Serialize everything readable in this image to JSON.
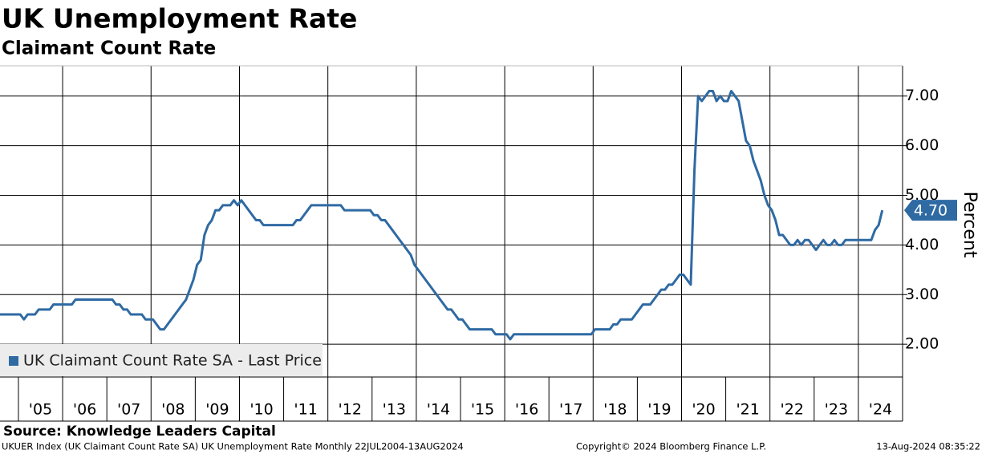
{
  "chart_data": {
    "type": "line",
    "title": "UK Unemployment Rate",
    "subtitle": "Claimant Count Rate",
    "ylabel": "Percent",
    "source": "Source: Knowledge Leaders Capital",
    "footer_left": "UKUER Index (UK Claimant Count Rate SA) UK Unemployment Rate  Monthly 22JUL2004-13AUG2024",
    "footer_center": "Copyright© 2024 Bloomberg Finance L.P.",
    "footer_right": "13-Aug-2024 08:35:22",
    "last_value_label": "4.70",
    "legend": "lower left",
    "grid": true,
    "ylim": [
      1.34,
      7.61
    ],
    "yticks": [
      {
        "value": 2,
        "label": "2.00"
      },
      {
        "value": 3,
        "label": "3.00"
      },
      {
        "value": 4,
        "label": "4.00"
      },
      {
        "value": 5,
        "label": "5.00"
      },
      {
        "value": 6,
        "label": "6.00"
      },
      {
        "value": 7,
        "label": "7.00"
      }
    ],
    "xlim": [
      "2004-08",
      "2025-01"
    ],
    "xticks": [
      {
        "value": "2005",
        "label": "'05"
      },
      {
        "value": "2006",
        "label": "'06"
      },
      {
        "value": "2007",
        "label": "'07"
      },
      {
        "value": "2008",
        "label": "'08"
      },
      {
        "value": "2009",
        "label": "'09"
      },
      {
        "value": "2010",
        "label": "'10"
      },
      {
        "value": "2011",
        "label": "'11"
      },
      {
        "value": "2012",
        "label": "'12"
      },
      {
        "value": "2013",
        "label": "'13"
      },
      {
        "value": "2014",
        "label": "'14"
      },
      {
        "value": "2015",
        "label": "'15"
      },
      {
        "value": "2016",
        "label": "'16"
      },
      {
        "value": "2017",
        "label": "'17"
      },
      {
        "value": "2018",
        "label": "'18"
      },
      {
        "value": "2019",
        "label": "'19"
      },
      {
        "value": "2020",
        "label": "'20"
      },
      {
        "value": "2021",
        "label": "'21"
      },
      {
        "value": "2022",
        "label": "'22"
      },
      {
        "value": "2023",
        "label": "'23"
      },
      {
        "value": "2024",
        "label": "'24"
      }
    ],
    "x": [
      "2004-07",
      "2004-08",
      "2004-09",
      "2004-10",
      "2004-11",
      "2004-12",
      "2005-01",
      "2005-02",
      "2005-03",
      "2005-04",
      "2005-05",
      "2005-06",
      "2005-07",
      "2005-08",
      "2005-09",
      "2005-10",
      "2005-11",
      "2005-12",
      "2006-01",
      "2006-02",
      "2006-03",
      "2006-04",
      "2006-05",
      "2006-06",
      "2006-07",
      "2006-08",
      "2006-09",
      "2006-10",
      "2006-11",
      "2006-12",
      "2007-01",
      "2007-02",
      "2007-03",
      "2007-04",
      "2007-05",
      "2007-06",
      "2007-07",
      "2007-08",
      "2007-09",
      "2007-10",
      "2007-11",
      "2007-12",
      "2008-01",
      "2008-02",
      "2008-03",
      "2008-04",
      "2008-05",
      "2008-06",
      "2008-07",
      "2008-08",
      "2008-09",
      "2008-10",
      "2008-11",
      "2008-12",
      "2009-01",
      "2009-02",
      "2009-03",
      "2009-04",
      "2009-05",
      "2009-06",
      "2009-07",
      "2009-08",
      "2009-09",
      "2009-10",
      "2009-11",
      "2009-12",
      "2010-01",
      "2010-02",
      "2010-03",
      "2010-04",
      "2010-05",
      "2010-06",
      "2010-07",
      "2010-08",
      "2010-09",
      "2010-10",
      "2010-11",
      "2010-12",
      "2011-01",
      "2011-02",
      "2011-03",
      "2011-04",
      "2011-05",
      "2011-06",
      "2011-07",
      "2011-08",
      "2011-09",
      "2011-10",
      "2011-11",
      "2011-12",
      "2012-01",
      "2012-02",
      "2012-03",
      "2012-04",
      "2012-05",
      "2012-06",
      "2012-07",
      "2012-08",
      "2012-09",
      "2012-10",
      "2012-11",
      "2012-12",
      "2013-01",
      "2013-02",
      "2013-03",
      "2013-04",
      "2013-05",
      "2013-06",
      "2013-07",
      "2013-08",
      "2013-09",
      "2013-10",
      "2013-11",
      "2013-12",
      "2014-01",
      "2014-02",
      "2014-03",
      "2014-04",
      "2014-05",
      "2014-06",
      "2014-07",
      "2014-08",
      "2014-09",
      "2014-10",
      "2014-11",
      "2014-12",
      "2015-01",
      "2015-02",
      "2015-03",
      "2015-04",
      "2015-05",
      "2015-06",
      "2015-07",
      "2015-08",
      "2015-09",
      "2015-10",
      "2015-11",
      "2015-12",
      "2016-01",
      "2016-02",
      "2016-03",
      "2016-04",
      "2016-05",
      "2016-06",
      "2016-07",
      "2016-08",
      "2016-09",
      "2016-10",
      "2016-11",
      "2016-12",
      "2017-01",
      "2017-02",
      "2017-03",
      "2017-04",
      "2017-05",
      "2017-06",
      "2017-07",
      "2017-08",
      "2017-09",
      "2017-10",
      "2017-11",
      "2017-12",
      "2018-01",
      "2018-02",
      "2018-03",
      "2018-04",
      "2018-05",
      "2018-06",
      "2018-07",
      "2018-08",
      "2018-09",
      "2018-10",
      "2018-11",
      "2018-12",
      "2019-01",
      "2019-02",
      "2019-03",
      "2019-04",
      "2019-05",
      "2019-06",
      "2019-07",
      "2019-08",
      "2019-09",
      "2019-10",
      "2019-11",
      "2019-12",
      "2020-01",
      "2020-02",
      "2020-03",
      "2020-04",
      "2020-05",
      "2020-06",
      "2020-07",
      "2020-08",
      "2020-09",
      "2020-10",
      "2020-11",
      "2020-12",
      "2021-01",
      "2021-02",
      "2021-03",
      "2021-04",
      "2021-05",
      "2021-06",
      "2021-07",
      "2021-08",
      "2021-09",
      "2021-10",
      "2021-11",
      "2021-12",
      "2022-01",
      "2022-02",
      "2022-03",
      "2022-04",
      "2022-05",
      "2022-06",
      "2022-07",
      "2022-08",
      "2022-09",
      "2022-10",
      "2022-11",
      "2022-12",
      "2023-01",
      "2023-02",
      "2023-03",
      "2023-04",
      "2023-05",
      "2023-06",
      "2023-07",
      "2023-08",
      "2023-09",
      "2023-10",
      "2023-11",
      "2023-12",
      "2024-01",
      "2024-02",
      "2024-03",
      "2024-04",
      "2024-05",
      "2024-06",
      "2024-07"
    ],
    "series": [
      {
        "name": "UK Claimant Count Rate SA - Last Price",
        "color": "#2f6aa3",
        "values": [
          2.6,
          2.6,
          2.6,
          2.6,
          2.6,
          2.6,
          2.6,
          2.5,
          2.6,
          2.6,
          2.6,
          2.7,
          2.7,
          2.7,
          2.7,
          2.8,
          2.8,
          2.8,
          2.8,
          2.8,
          2.8,
          2.9,
          2.9,
          2.9,
          2.9,
          2.9,
          2.9,
          2.9,
          2.9,
          2.9,
          2.9,
          2.9,
          2.8,
          2.8,
          2.7,
          2.7,
          2.6,
          2.6,
          2.6,
          2.6,
          2.5,
          2.5,
          2.5,
          2.4,
          2.3,
          2.3,
          2.4,
          2.5,
          2.6,
          2.7,
          2.8,
          2.9,
          3.1,
          3.3,
          3.6,
          3.7,
          4.2,
          4.4,
          4.5,
          4.7,
          4.7,
          4.8,
          4.8,
          4.8,
          4.9,
          4.8,
          4.9,
          4.8,
          4.7,
          4.6,
          4.5,
          4.5,
          4.4,
          4.4,
          4.4,
          4.4,
          4.4,
          4.4,
          4.4,
          4.4,
          4.4,
          4.5,
          4.5,
          4.6,
          4.7,
          4.8,
          4.8,
          4.8,
          4.8,
          4.8,
          4.8,
          4.8,
          4.8,
          4.8,
          4.7,
          4.7,
          4.7,
          4.7,
          4.7,
          4.7,
          4.7,
          4.7,
          4.6,
          4.6,
          4.5,
          4.5,
          4.4,
          4.3,
          4.2,
          4.1,
          4.0,
          3.9,
          3.8,
          3.6,
          3.5,
          3.4,
          3.3,
          3.2,
          3.1,
          3.0,
          2.9,
          2.8,
          2.7,
          2.7,
          2.6,
          2.5,
          2.5,
          2.4,
          2.3,
          2.3,
          2.3,
          2.3,
          2.3,
          2.3,
          2.3,
          2.2,
          2.2,
          2.2,
          2.2,
          2.1,
          2.2,
          2.2,
          2.2,
          2.2,
          2.2,
          2.2,
          2.2,
          2.2,
          2.2,
          2.2,
          2.2,
          2.2,
          2.2,
          2.2,
          2.2,
          2.2,
          2.2,
          2.2,
          2.2,
          2.2,
          2.2,
          2.2,
          2.3,
          2.3,
          2.3,
          2.3,
          2.3,
          2.4,
          2.4,
          2.5,
          2.5,
          2.5,
          2.5,
          2.6,
          2.7,
          2.8,
          2.8,
          2.8,
          2.9,
          3.0,
          3.1,
          3.1,
          3.2,
          3.2,
          3.3,
          3.4,
          3.4,
          3.3,
          3.2,
          5.5,
          7.0,
          6.9,
          7.0,
          7.1,
          7.1,
          6.9,
          7.0,
          6.9,
          6.9,
          7.1,
          7.0,
          6.9,
          6.5,
          6.1,
          6.0,
          5.7,
          5.5,
          5.3,
          5.0,
          4.8,
          4.7,
          4.5,
          4.2,
          4.2,
          4.1,
          4.0,
          4.0,
          4.1,
          4.0,
          4.1,
          4.1,
          4.0,
          3.9,
          4.0,
          4.1,
          4.0,
          4.0,
          4.1,
          4.0,
          4.0,
          4.1,
          4.1,
          4.1,
          4.1,
          4.1,
          4.1,
          4.1,
          4.1,
          4.3,
          4.4,
          4.7
        ]
      }
    ]
  }
}
